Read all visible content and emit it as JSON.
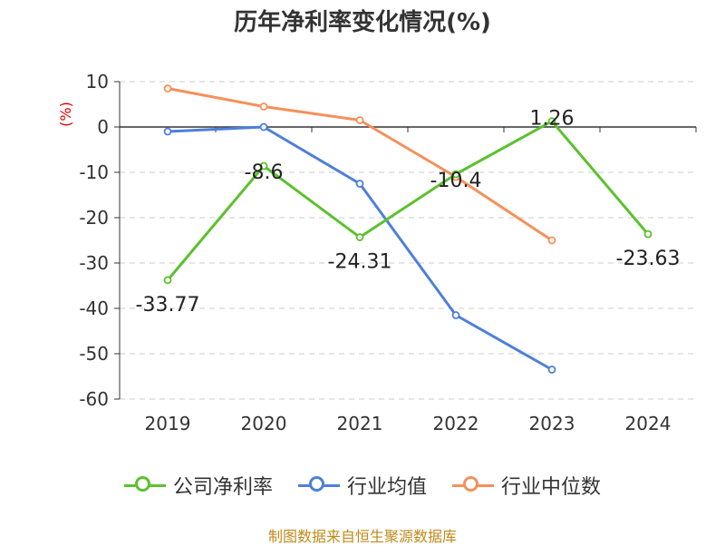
{
  "source": "制图数据来自恒生聚源数据库",
  "chart_data": {
    "type": "line",
    "title": "历年净利率变化情况(%)",
    "ylabel": "(%)",
    "categories": [
      "2019",
      "2020",
      "2021",
      "2022",
      "2023",
      "2024"
    ],
    "ylim": [
      -60,
      10
    ],
    "yticks": [
      10,
      0,
      -10,
      -20,
      -30,
      -40,
      -50,
      -60
    ],
    "grid": true,
    "legend_position": "bottom",
    "series": [
      {
        "name": "公司净利率",
        "color": "#5cc12e",
        "values": [
          -33.77,
          -8.6,
          -24.31,
          -10.4,
          1.26,
          -23.63
        ],
        "labels": [
          "-33.77",
          "-8.6",
          "-24.31",
          "-10.4",
          "1.26",
          "-23.63"
        ]
      },
      {
        "name": "行业均值",
        "color": "#4e7fdb",
        "values": [
          -1.0,
          0.0,
          -12.5,
          -41.5,
          -53.5,
          null
        ]
      },
      {
        "name": "行业中位数",
        "color": "#f5905a",
        "values": [
          8.5,
          4.5,
          1.5,
          -11.0,
          -25.0,
          null
        ]
      }
    ]
  }
}
